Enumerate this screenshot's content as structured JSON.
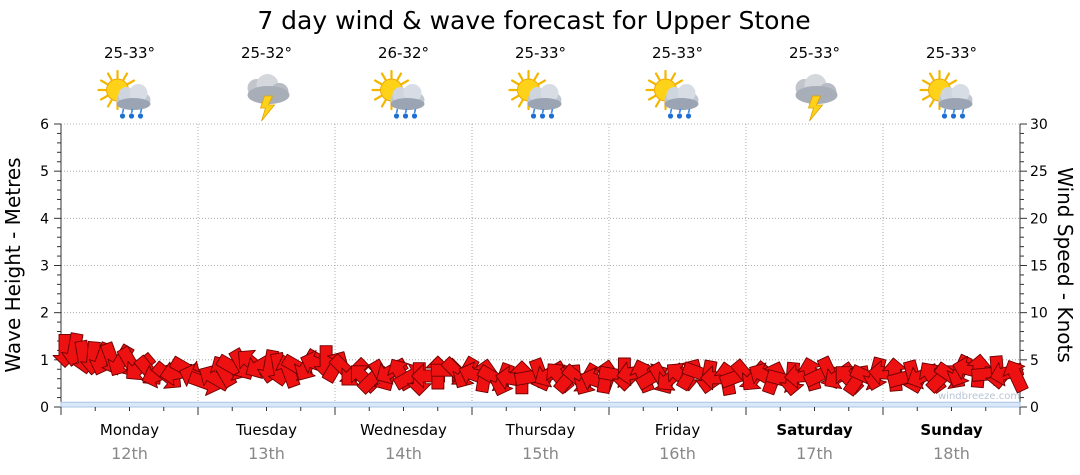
{
  "chart_data": {
    "type": "line",
    "title": "7 day wind & wave forecast for Upper Stone",
    "y_left_label": "Wave Height - Metres",
    "y_right_label": "Wind Speed - Knots",
    "y_left_ticks": [
      "0",
      "1",
      "2",
      "3",
      "4",
      "5",
      "6"
    ],
    "y_right_ticks": [
      "0",
      "5",
      "10",
      "15",
      "20",
      "25",
      "30"
    ],
    "ylim_left": [
      0,
      6
    ],
    "ylim_right": [
      0,
      30
    ],
    "grid": true,
    "days": [
      {
        "day": "Monday",
        "date": "12th",
        "temp": "25-33°",
        "icon": "sun-cloud-rain-icon",
        "bold": false
      },
      {
        "day": "Tuesday",
        "date": "13th",
        "temp": "25-32°",
        "icon": "thunderstorm-icon",
        "bold": false
      },
      {
        "day": "Wednesday",
        "date": "14th",
        "temp": "26-32°",
        "icon": "sun-cloud-rain-icon",
        "bold": false
      },
      {
        "day": "Thursday",
        "date": "15th",
        "temp": "25-33°",
        "icon": "sun-cloud-rain-icon",
        "bold": false
      },
      {
        "day": "Friday",
        "date": "16th",
        "temp": "25-33°",
        "icon": "sun-cloud-rain-icon",
        "bold": false
      },
      {
        "day": "Saturday",
        "date": "17th",
        "temp": "25-33°",
        "icon": "thunderstorm-icon",
        "bold": true
      },
      {
        "day": "Sunday",
        "date": "18th",
        "temp": "25-33°",
        "icon": "sun-cloud-rain-icon",
        "bold": true
      }
    ],
    "wave_series": {
      "name": "Wave Height",
      "unit": "Metres",
      "values": [
        0.1,
        0.1,
        0.1,
        0.1,
        0.1,
        0.1,
        0.1,
        0.1,
        0.1,
        0.1,
        0.1,
        0.1,
        0.1,
        0.1,
        0.1,
        0.1,
        0.1,
        0.1,
        0.1,
        0.1,
        0.1,
        0.1,
        0.1,
        0.1,
        0.1,
        0.1,
        0.1,
        0.1
      ]
    },
    "wind_series": {
      "name": "Wind",
      "unit": "Knots",
      "speeds": [
        6.0,
        6.1,
        5.3,
        5.2,
        5.1,
        5.1,
        4.9,
        4.7,
        4.2,
        3.8,
        3.4,
        3.3,
        3.6,
        4.0,
        3.2,
        2.6,
        3.1,
        3.8,
        4.2,
        4.5,
        4.7,
        4.4,
        4.3,
        4.0,
        3.8,
        4.2,
        4.4,
        4.6,
        4.8,
        4.3,
        4.0,
        3.6,
        3.1,
        3.0,
        3.3,
        3.8,
        3.5,
        3.2,
        3.0,
        3.3,
        3.6,
        3.9,
        3.7,
        3.6,
        3.4,
        3.3,
        3.1,
        2.9,
        3.0,
        3.1,
        3.2,
        3.4,
        3.5,
        3.2,
        3.1,
        3.0,
        2.9,
        2.8,
        3.2,
        3.4,
        3.5,
        3.6,
        3.3,
        3.2,
        3.0,
        3.1,
        3.3,
        3.5,
        3.6,
        3.2,
        3.1,
        3.0,
        3.2,
        3.4,
        3.2,
        3.3,
        3.1,
        2.9,
        3.0,
        3.3,
        3.5,
        3.4,
        3.6,
        3.3,
        3.0,
        2.9,
        3.2,
        3.5,
        3.6,
        3.4,
        3.1,
        3.2,
        3.3,
        3.2,
        3.1,
        3.3,
        3.8,
        4.0,
        3.8,
        3.5,
        3.7,
        3.6,
        3.3
      ],
      "directions_deg": [
        90,
        100,
        80,
        95,
        110,
        70,
        120,
        60,
        140,
        50,
        160,
        40,
        170,
        30,
        200,
        20,
        210,
        240,
        30,
        60,
        220,
        150,
        100,
        80,
        250,
        30,
        120,
        200,
        90,
        300,
        45,
        135,
        225,
        315,
        60,
        150,
        240,
        330,
        90,
        180,
        270,
        0,
        45,
        120,
        200,
        280,
        30,
        110,
        190,
        270,
        350,
        70,
        150,
        230,
        310,
        40,
        120,
        200,
        280,
        10,
        90,
        170,
        250,
        330,
        60,
        140,
        220,
        300,
        20,
        100,
        180,
        260,
        340,
        50,
        130,
        210,
        290,
        15,
        95,
        175,
        255,
        335,
        65,
        145,
        225,
        305,
        25,
        105,
        185,
        265,
        345,
        75,
        155,
        235,
        315,
        35,
        115,
        195,
        275,
        355,
        85,
        165,
        245
      ]
    }
  },
  "watermark": "windbreeze.com"
}
